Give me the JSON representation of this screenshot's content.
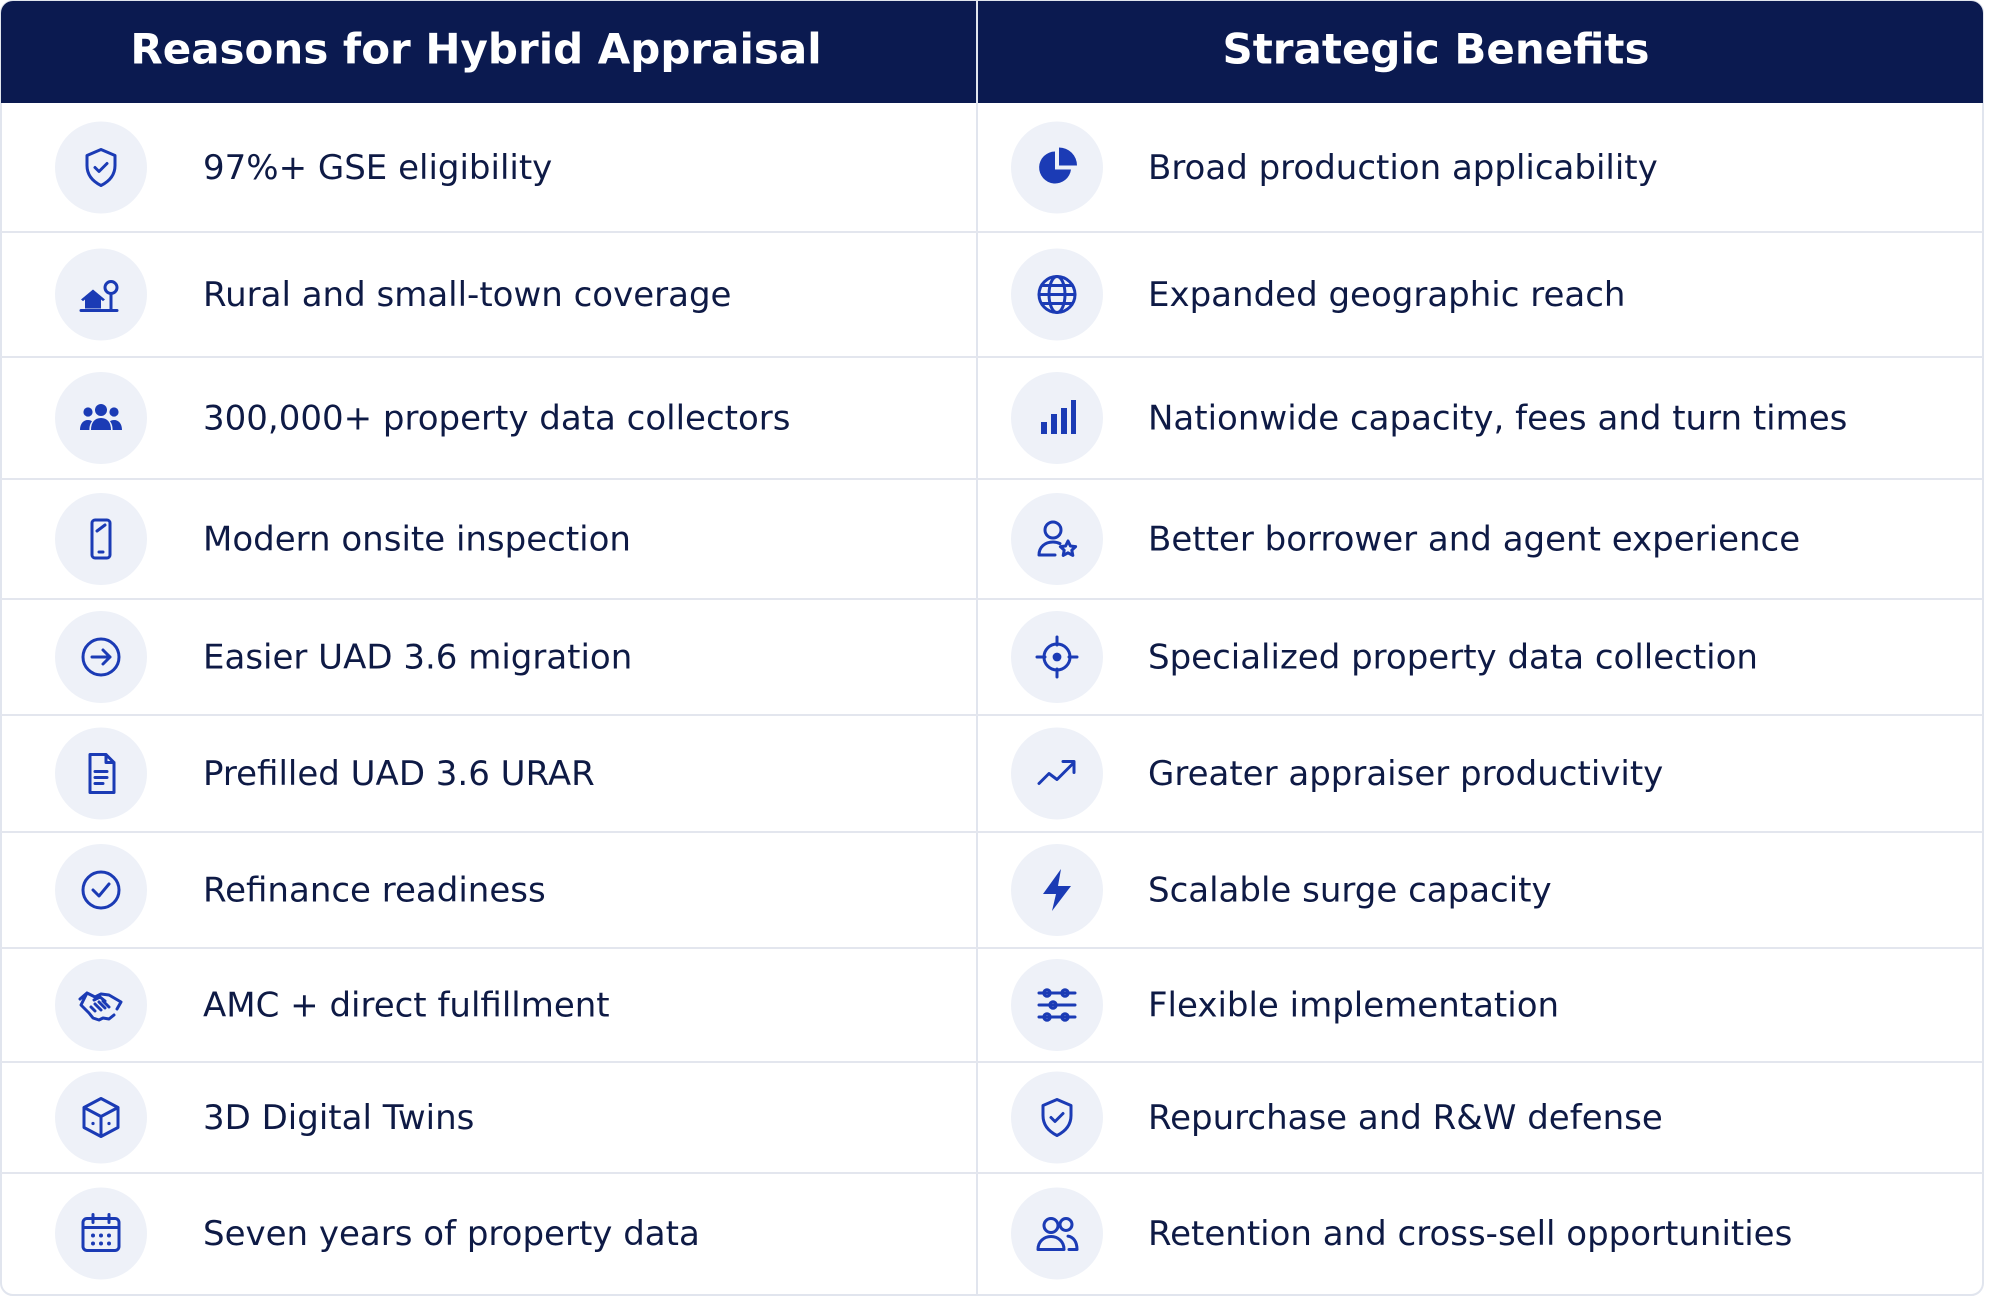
{
  "table": {
    "header": [
      "Reasons for Hybrid Appraisal",
      "Strategic Benefits"
    ],
    "rows": [
      [
        "97%+ GSE eligibility",
        "Broad production applicability"
      ],
      [
        "Rural and small-town coverage",
        "Expanded geographic reach"
      ],
      [
        "300,000+ property data collectors",
        "Nationwide capacity, fees and turn times"
      ],
      [
        "Modern onsite inspection",
        "Better borrower and agent experience"
      ],
      [
        "Easier UAD 3.6 migration",
        "Specialized property data collection"
      ],
      [
        "Prefilled UAD 3.6 URAR",
        "Greater appraiser productivity"
      ],
      [
        "Refinance readiness",
        "Scalable surge capacity"
      ],
      [
        "AMC + direct fulfillment",
        "Flexible implementation"
      ],
      [
        "3D Digital Twins",
        "Repurchase and R&W defense"
      ],
      [
        "Seven years of property data",
        "Retention and cross-sell opportunities"
      ]
    ]
  }
}
